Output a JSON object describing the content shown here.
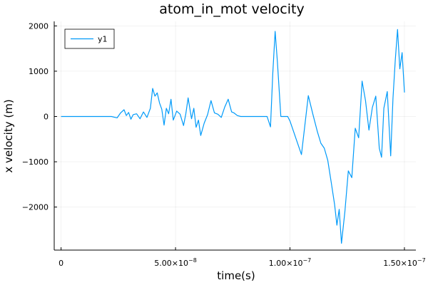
{
  "chart_data": {
    "type": "line",
    "title": "atom_in_mot velocity",
    "xlabel": "time(s)",
    "ylabel": "x velocity (m)",
    "xlim": [
      -3e-09,
      1.55e-07
    ],
    "ylim": [
      -2950,
      2100
    ],
    "grid": true,
    "legend": {
      "placement": "top-left",
      "entries": [
        "y1"
      ]
    },
    "x_ticks": [
      {
        "value": 0,
        "mant": "0",
        "exp": ""
      },
      {
        "value": 5e-08,
        "mant": "5.00×10",
        "exp": "−8"
      },
      {
        "value": 1e-07,
        "mant": "1.00×10",
        "exp": "−7"
      },
      {
        "value": 1.5e-07,
        "mant": "1.50×10",
        "exp": "−7"
      }
    ],
    "y_ticks": [
      {
        "value": -2000,
        "label": "−2000"
      },
      {
        "value": -1000,
        "label": "−1000"
      },
      {
        "value": 0,
        "label": "0"
      },
      {
        "value": 1000,
        "label": "1000"
      },
      {
        "value": 2000,
        "label": "2000"
      }
    ],
    "series": [
      {
        "name": "y1",
        "color": "#009af9",
        "x": [
          0,
          2.2e-08,
          2.45e-08,
          2.6e-08,
          2.75e-08,
          2.85e-08,
          2.95e-08,
          3.05e-08,
          3.15e-08,
          3.3e-08,
          3.45e-08,
          3.6e-08,
          3.75e-08,
          3.9e-08,
          4e-08,
          4.1e-08,
          4.2e-08,
          4.3e-08,
          4.4e-08,
          4.5e-08,
          4.6e-08,
          4.7e-08,
          4.8e-08,
          4.9e-08,
          5.05e-08,
          5.2e-08,
          5.35e-08,
          5.45e-08,
          5.55e-08,
          5.7e-08,
          5.8e-08,
          5.9e-08,
          6e-08,
          6.1e-08,
          6.25e-08,
          6.4e-08,
          6.55e-08,
          6.7e-08,
          6.85e-08,
          7e-08,
          7.15e-08,
          7.3e-08,
          7.45e-08,
          7.55e-08,
          7.7e-08,
          7.85e-08,
          9e-08,
          9.15e-08,
          9.25e-08,
          9.35e-08,
          9.45e-08,
          9.5e-08,
          9.6e-08,
          9.7e-08,
          9.8e-08,
          9.9e-08,
          1e-07,
          1.05e-07,
          1.08e-07,
          1.1e-07,
          1.12e-07,
          1.135e-07,
          1.15e-07,
          1.165e-07,
          1.18e-07,
          1.195e-07,
          1.205e-07,
          1.215e-07,
          1.225e-07,
          1.24e-07,
          1.255e-07,
          1.27e-07,
          1.285e-07,
          1.3e-07,
          1.315e-07,
          1.33e-07,
          1.345e-07,
          1.36e-07,
          1.375e-07,
          1.39e-07,
          1.4e-07,
          1.41e-07,
          1.425e-07,
          1.44e-07,
          1.45e-07,
          1.46e-07,
          1.47e-07,
          1.48e-07,
          1.49e-07,
          1.5e-07
        ],
        "y": [
          0,
          0,
          -30,
          80,
          150,
          20,
          90,
          -60,
          40,
          60,
          -50,
          100,
          -20,
          180,
          620,
          450,
          520,
          300,
          160,
          -190,
          180,
          60,
          380,
          -80,
          120,
          50,
          -200,
          60,
          410,
          -50,
          180,
          -240,
          -80,
          -420,
          -150,
          40,
          350,
          80,
          50,
          -20,
          210,
          380,
          100,
          80,
          20,
          0,
          0,
          -230,
          950,
          1880,
          1200,
          800,
          0,
          0,
          0,
          0,
          -100,
          -840,
          460,
          50,
          -340,
          -590,
          -700,
          -970,
          -1450,
          -1950,
          -2400,
          -2050,
          -2800,
          -2100,
          -1200,
          -1350,
          -260,
          -470,
          780,
          350,
          -300,
          200,
          450,
          -700,
          -900,
          180,
          550,
          -870,
          400,
          1240,
          1920,
          1050,
          1410,
          530
        ]
      }
    ]
  }
}
